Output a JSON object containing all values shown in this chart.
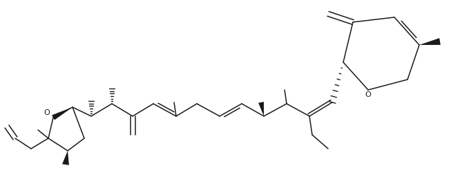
{
  "figsize": [
    6.66,
    2.82
  ],
  "dpi": 100,
  "bg": "white",
  "lc": "#1a1a1a",
  "lw": 1.1
}
